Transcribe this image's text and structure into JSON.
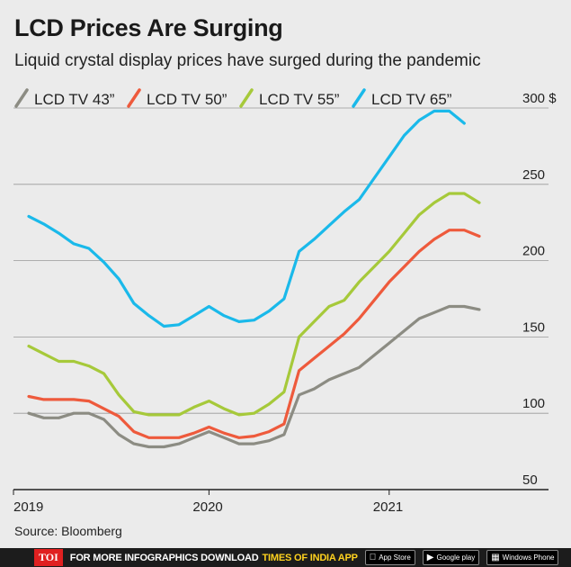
{
  "header": {
    "title": "LCD Prices Are Surging",
    "subtitle": "Liquid crystal display prices have surged during the pandemic"
  },
  "source": "Source: Bloomberg",
  "footer": {
    "brand": "TOI",
    "text": "FOR MORE  INFOGRAPHICS DOWNLOAD",
    "highlight": "TIMES OF INDIA APP",
    "badges": [
      {
        "icon": "apple-icon",
        "label": "App Store"
      },
      {
        "icon": "google-play-icon",
        "label": "Google play"
      },
      {
        "icon": "windows-icon",
        "label": "Windows Phone"
      }
    ]
  },
  "chart_data": {
    "type": "line",
    "title": "LCD Prices Are Surging",
    "subtitle": "Liquid crystal display prices have surged during the pandemic",
    "x_tick_labels": [
      "2019",
      "2020",
      "2021"
    ],
    "y_tick_labels": [
      "300 $",
      "250",
      "200",
      "150",
      "100",
      "50"
    ],
    "ylim": [
      50,
      300
    ],
    "grid": true,
    "legend_position": "top-left",
    "x": [
      "2019-01",
      "2019-02",
      "2019-03",
      "2019-04",
      "2019-05",
      "2019-06",
      "2019-07",
      "2019-08",
      "2019-09",
      "2019-10",
      "2019-11",
      "2019-12",
      "2020-01",
      "2020-02",
      "2020-03",
      "2020-04",
      "2020-05",
      "2020-06",
      "2020-07",
      "2020-08",
      "2020-09",
      "2020-10",
      "2020-11",
      "2020-12",
      "2021-01",
      "2021-02",
      "2021-03",
      "2021-04",
      "2021-05",
      "2021-06",
      "2021-07",
      "2021-08",
      "2021-09"
    ],
    "series": [
      {
        "name": "LCD TV 43”",
        "color": "#8c8c83",
        "values": [
          100,
          97,
          97,
          100,
          100,
          96,
          86,
          80,
          78,
          78,
          80,
          84,
          88,
          84,
          80,
          80,
          82,
          86,
          112,
          116,
          122,
          126,
          130,
          138,
          146,
          154,
          162,
          166,
          170,
          170,
          168,
          null,
          null
        ]
      },
      {
        "name": "LCD TV 50”",
        "color": "#ee5a3c",
        "values": [
          111,
          109,
          109,
          109,
          108,
          103,
          98,
          88,
          84,
          84,
          84,
          87,
          91,
          87,
          84,
          85,
          88,
          93,
          128,
          136,
          144,
          152,
          162,
          174,
          186,
          196,
          206,
          214,
          220,
          220,
          216,
          null,
          null
        ]
      },
      {
        "name": "LCD TV 55”",
        "color": "#a6c93a",
        "values": [
          144,
          139,
          134,
          134,
          131,
          126,
          112,
          101,
          99,
          99,
          99,
          104,
          108,
          103,
          99,
          100,
          106,
          114,
          150,
          160,
          170,
          174,
          186,
          196,
          206,
          218,
          230,
          238,
          244,
          244,
          238,
          null,
          null
        ]
      },
      {
        "name": "LCD TV 65”",
        "color": "#1ab9ea",
        "values": [
          229,
          224,
          218,
          211,
          208,
          199,
          188,
          172,
          164,
          157,
          158,
          164,
          170,
          164,
          160,
          161,
          167,
          175,
          206,
          214,
          223,
          232,
          240,
          254,
          268,
          282,
          292,
          298,
          298,
          290,
          null,
          null,
          null
        ]
      }
    ]
  }
}
